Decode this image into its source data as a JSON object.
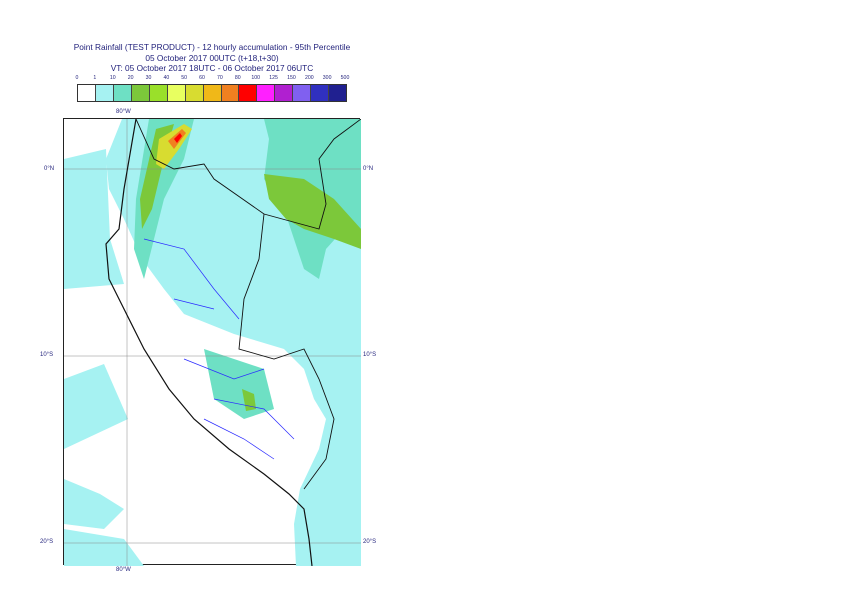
{
  "title": {
    "line1": "Point Rainfall (TEST PRODUCT) - 12 hourly accumulation - 95th Percentile",
    "line2": "05 October 2017 00UTC (t+18,t+30)",
    "line3": "VT: 05 October 2017 18UTC - 06 October 2017 06UTC"
  },
  "legend": {
    "thresholds": [
      "0",
      "1",
      "10",
      "20",
      "30",
      "40",
      "50",
      "60",
      "70",
      "80",
      "100",
      "125",
      "150",
      "200",
      "300",
      "500"
    ],
    "colors": [
      "#ffffff",
      "#a6f2f2",
      "#6ee0c4",
      "#7cc83a",
      "#9ae02a",
      "#e8ff60",
      "#d8dc30",
      "#f0b818",
      "#f08020",
      "#ff0000",
      "#ff20ff",
      "#b020d0",
      "#8060f0",
      "#3030c0",
      "#202090"
    ]
  },
  "axes": {
    "top_lon": "80°W",
    "bottom_lon": "80°W",
    "lat_labels": [
      "0°N",
      "10°S",
      "20°S"
    ]
  }
}
